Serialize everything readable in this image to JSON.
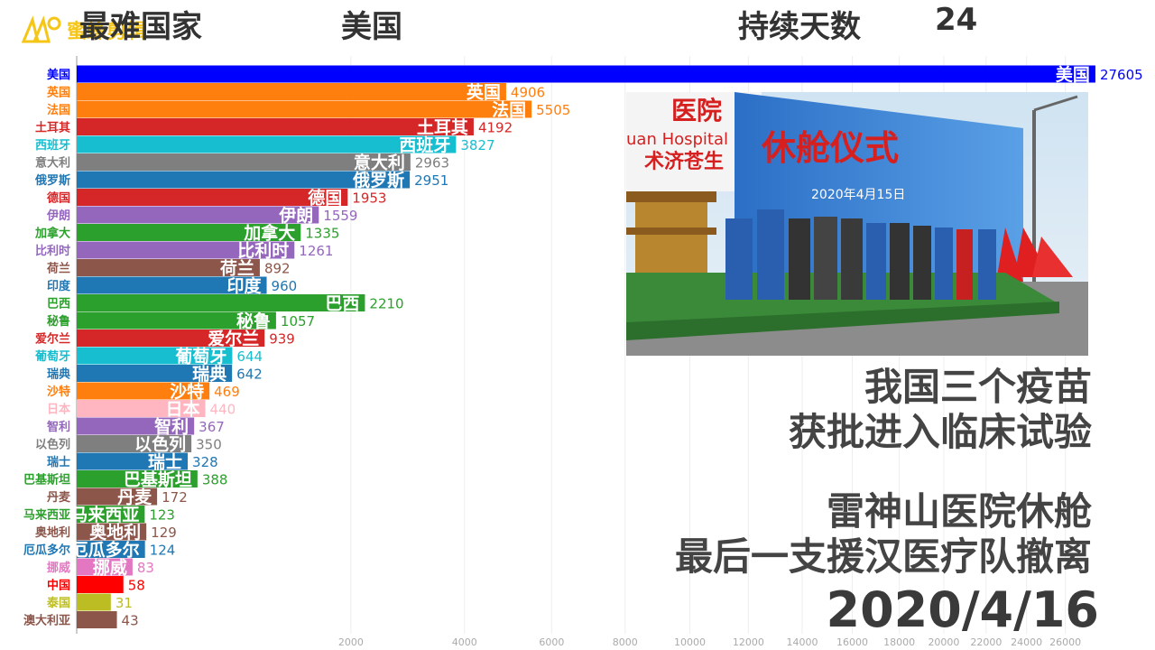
{
  "header": {
    "worst_label": "最难国家",
    "worst_country": "美国",
    "days_label": "持续天数",
    "days_value": "24"
  },
  "logo": {
    "text": "蜜蜂剪辑",
    "icon": "bee-logo-icon"
  },
  "photo": {
    "banner_text": "休舱仪式",
    "banner_date": "2020年4月15日",
    "hospital_text": "医院",
    "hospital_en": "uan Hospital",
    "hospital_motto": "术济苍生"
  },
  "captions": {
    "line1": "我国三个疫苗",
    "line2": "获批进入临床试验",
    "line3": "雷神山医院休舱",
    "line4": "最后一支援汉医疗队撤离"
  },
  "date": "2020/4/16",
  "chart_data": {
    "type": "bar",
    "orientation": "horizontal",
    "xlim": [
      0,
      28000
    ],
    "xticks": [
      2000,
      4000,
      6000,
      8000,
      10000,
      12000,
      14000,
      16000,
      18000,
      20000,
      22000,
      24000,
      26000
    ],
    "categories": [
      "美国",
      "英国",
      "法国",
      "土耳其",
      "西班牙",
      "意大利",
      "俄罗斯",
      "德国",
      "伊朗",
      "加拿大",
      "比利时",
      "荷兰",
      "印度",
      "巴西",
      "秘鲁",
      "爱尔兰",
      "葡萄牙",
      "瑞典",
      "沙特",
      "日本",
      "智利",
      "以色列",
      "瑞士",
      "巴基斯坦",
      "丹麦",
      "马来西亚",
      "奥地利",
      "厄瓜多尔",
      "挪威",
      "中国",
      "泰国",
      "澳大利亚"
    ],
    "values": [
      27605,
      4906,
      5505,
      4192,
      3827,
      2963,
      2951,
      1953,
      1559,
      1335,
      1261,
      892,
      960,
      2210,
      1057,
      939,
      644,
      642,
      469,
      440,
      367,
      350,
      328,
      388,
      172,
      123,
      129,
      124,
      83,
      58,
      31,
      43
    ],
    "colors": [
      "#0000ff",
      "#ff7f0e",
      "#ff7f0e",
      "#d62728",
      "#17becf",
      "#7f7f7f",
      "#1f77b4",
      "#d62728",
      "#9467bd",
      "#2ca02c",
      "#9467bd",
      "#8c564b",
      "#1f77b4",
      "#2ca02c",
      "#2ca02c",
      "#d62728",
      "#17becf",
      "#1f77b4",
      "#ff7f0e",
      "#ffb6c1",
      "#9467bd",
      "#7f7f7f",
      "#1f77b4",
      "#2ca02c",
      "#8c564b",
      "#2ca02c",
      "#8c564b",
      "#1f77b4",
      "#e377c2",
      "#ff0000",
      "#bcbd22",
      "#8c564b"
    ]
  }
}
